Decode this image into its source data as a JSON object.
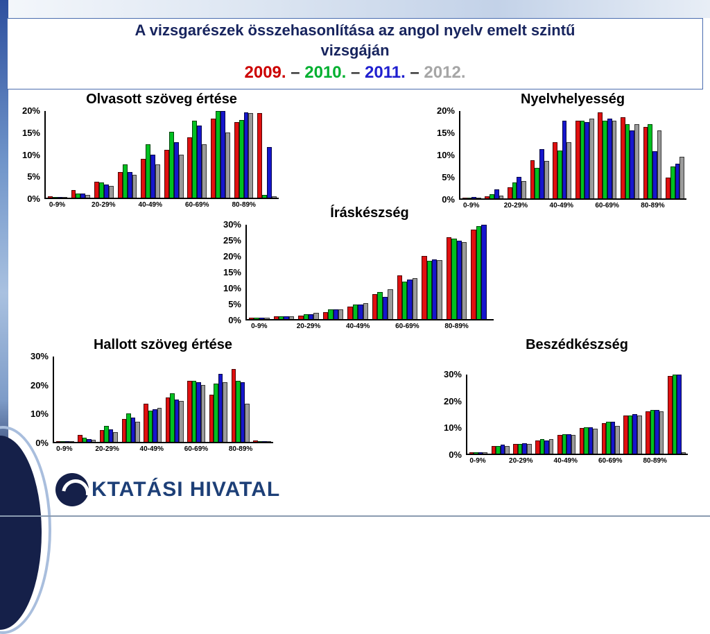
{
  "slide": {
    "title_line1": "A vizsgarészek összehasonlítása az angol nyelv emelt szintű",
    "title_line2": "vizsgáján",
    "separator": " – ",
    "years": [
      {
        "label": "2009.",
        "color": "#cc0000"
      },
      {
        "label": "2010.",
        "color": "#00b030"
      },
      {
        "label": "2011.",
        "color": "#1f1fcf"
      },
      {
        "label": "2012.",
        "color": "#a6a6a6"
      }
    ]
  },
  "footer": {
    "logo_text": "KTATÁSI HIVATAL"
  },
  "chart_data": [
    {
      "id": "reading",
      "type": "bar",
      "title": "Olvasott szöveg értése",
      "ylim": [
        0,
        20
      ],
      "yticks": [
        0,
        5,
        10,
        15,
        20
      ],
      "ytick_suffix": "%",
      "grid": false,
      "legend": "years shown in slide title",
      "categories": [
        "0-9%",
        "10-19%",
        "20-29%",
        "30-39%",
        "40-49%",
        "50-59%",
        "60-69%",
        "70-79%",
        "80-89%",
        "90-100%"
      ],
      "xtick_labels_shown": [
        "0-9%",
        "20-29%",
        "40-49%",
        "60-69%",
        "80-89%"
      ],
      "series": [
        {
          "name": "2009",
          "color": "#e01010",
          "values": [
            0.3,
            1.7,
            3.7,
            6.0,
            9.0,
            11.0,
            14.0,
            18.2,
            17.5,
            19.5
          ]
        },
        {
          "name": "2010",
          "color": "#00c020",
          "values": [
            0.2,
            1.0,
            3.5,
            7.7,
            12.3,
            15.2,
            17.8,
            20.0,
            18.0,
            0.6
          ]
        },
        {
          "name": "2011",
          "color": "#1616cc",
          "values": [
            0.2,
            1.0,
            3.0,
            6.0,
            10.0,
            12.8,
            16.7,
            20.0,
            19.7,
            11.7
          ]
        },
        {
          "name": "2012",
          "color": "#9b9b9b",
          "values": [
            0.2,
            0.7,
            2.7,
            5.3,
            7.7,
            10.0,
            12.3,
            15.0,
            19.5,
            0.4
          ]
        }
      ]
    },
    {
      "id": "grammar",
      "type": "bar",
      "title": "Nyelvhelyesség",
      "ylim": [
        0,
        20
      ],
      "yticks": [
        0,
        5,
        10,
        15,
        20
      ],
      "ytick_suffix": "%",
      "grid": false,
      "categories": [
        "0-9%",
        "10-19%",
        "20-29%",
        "30-39%",
        "40-49%",
        "50-59%",
        "60-69%",
        "70-79%",
        "80-89%",
        "90-100%"
      ],
      "xtick_labels_shown": [
        "0-9%",
        "20-29%",
        "40-49%",
        "60-69%",
        "80-89%"
      ],
      "series": [
        {
          "name": "2009",
          "color": "#e01010",
          "values": [
            0.2,
            0.4,
            2.6,
            8.8,
            12.8,
            17.8,
            19.7,
            18.5,
            16.3,
            4.8
          ]
        },
        {
          "name": "2010",
          "color": "#00c020",
          "values": [
            0.2,
            0.9,
            3.6,
            7.0,
            11.0,
            17.8,
            17.8,
            17.0,
            17.0,
            7.3
          ]
        },
        {
          "name": "2011",
          "color": "#1616cc",
          "values": [
            0.3,
            2.0,
            5.0,
            11.3,
            17.8,
            17.5,
            18.3,
            15.5,
            10.8,
            8.0
          ]
        },
        {
          "name": "2012",
          "color": "#9b9b9b",
          "values": [
            0.2,
            0.6,
            4.0,
            8.5,
            12.8,
            18.3,
            17.8,
            17.0,
            15.5,
            9.5
          ]
        }
      ]
    },
    {
      "id": "writing",
      "type": "bar",
      "title": "Íráskészség",
      "ylim": [
        0,
        30
      ],
      "yticks": [
        0,
        5,
        10,
        15,
        20,
        25,
        30
      ],
      "ytick_suffix": "%",
      "grid": false,
      "categories": [
        "0-9%",
        "10-19%",
        "20-29%",
        "30-39%",
        "40-49%",
        "50-59%",
        "60-69%",
        "70-79%",
        "80-89%",
        "90-100%"
      ],
      "xtick_labels_shown": [
        "0-9%",
        "20-29%",
        "40-49%",
        "60-69%",
        "80-89%"
      ],
      "series": [
        {
          "name": "2009",
          "color": "#e01010",
          "values": [
            0.4,
            0.8,
            1.2,
            2.2,
            4.0,
            8.0,
            14.0,
            20.0,
            26.0,
            28.5
          ]
        },
        {
          "name": "2010",
          "color": "#00c020",
          "values": [
            0.4,
            0.9,
            1.6,
            3.0,
            4.6,
            8.5,
            12.0,
            18.5,
            25.5,
            29.5
          ]
        },
        {
          "name": "2011",
          "color": "#1616cc",
          "values": [
            0.4,
            0.9,
            1.6,
            3.0,
            4.6,
            7.0,
            12.5,
            19.0,
            25.0,
            30.0
          ]
        },
        {
          "name": "2012",
          "color": "#9b9b9b",
          "values": [
            0.4,
            0.8,
            1.9,
            3.0,
            5.0,
            9.5,
            13.0,
            18.7,
            24.5,
            0.0
          ]
        }
      ]
    },
    {
      "id": "listening",
      "type": "bar",
      "title": "Hallott szöveg értése",
      "ylim": [
        0,
        30
      ],
      "yticks": [
        0,
        10,
        20,
        30
      ],
      "ytick_suffix": "%",
      "grid": false,
      "categories": [
        "0-9%",
        "10-19%",
        "20-29%",
        "30-39%",
        "40-49%",
        "50-59%",
        "60-69%",
        "70-79%",
        "80-89%",
        "90-100%"
      ],
      "xtick_labels_shown": [
        "0-9%",
        "20-29%",
        "40-49%",
        "60-69%",
        "80-89%"
      ],
      "series": [
        {
          "name": "2009",
          "color": "#e01010",
          "values": [
            0.3,
            2.5,
            4.2,
            8.0,
            13.5,
            15.5,
            21.5,
            16.5,
            25.5,
            0.4
          ]
        },
        {
          "name": "2010",
          "color": "#00c020",
          "values": [
            0.2,
            1.4,
            5.5,
            10.0,
            11.0,
            17.0,
            21.5,
            20.5,
            21.5,
            0.3
          ]
        },
        {
          "name": "2011",
          "color": "#1616cc",
          "values": [
            0.2,
            0.9,
            4.3,
            8.5,
            11.5,
            15.0,
            21.0,
            24.0,
            21.0,
            0.3
          ]
        },
        {
          "name": "2012",
          "color": "#9b9b9b",
          "values": [
            0.2,
            0.8,
            3.4,
            7.0,
            12.0,
            14.5,
            20.0,
            21.0,
            13.5,
            0.2
          ]
        }
      ]
    },
    {
      "id": "speaking",
      "type": "bar",
      "title": "Beszédkészség",
      "ylim": [
        0,
        30
      ],
      "yticks": [
        0,
        10,
        20,
        30
      ],
      "ytick_suffix": "%",
      "grid": false,
      "categories": [
        "0-9%",
        "10-19%",
        "20-29%",
        "30-39%",
        "40-49%",
        "50-59%",
        "60-69%",
        "70-79%",
        "80-89%",
        "90-100%"
      ],
      "xtick_labels_shown": [
        "0-9%",
        "20-29%",
        "40-49%",
        "60-69%",
        "80-89%"
      ],
      "series": [
        {
          "name": "2009",
          "color": "#e01010",
          "values": [
            0.6,
            3.0,
            3.8,
            5.0,
            7.0,
            9.8,
            11.5,
            14.5,
            16.0,
            29.5
          ]
        },
        {
          "name": "2010",
          "color": "#00c020",
          "values": [
            0.5,
            3.0,
            3.8,
            5.4,
            7.5,
            10.0,
            12.0,
            14.5,
            16.5,
            30.0
          ]
        },
        {
          "name": "2011",
          "color": "#1616cc",
          "values": [
            0.5,
            3.4,
            4.0,
            5.0,
            7.5,
            10.0,
            12.0,
            15.0,
            16.5,
            30.0
          ]
        },
        {
          "name": "2012",
          "color": "#9b9b9b",
          "values": [
            0.5,
            3.0,
            3.8,
            5.4,
            7.0,
            9.5,
            10.5,
            14.5,
            16.0,
            0.5
          ]
        }
      ]
    }
  ]
}
